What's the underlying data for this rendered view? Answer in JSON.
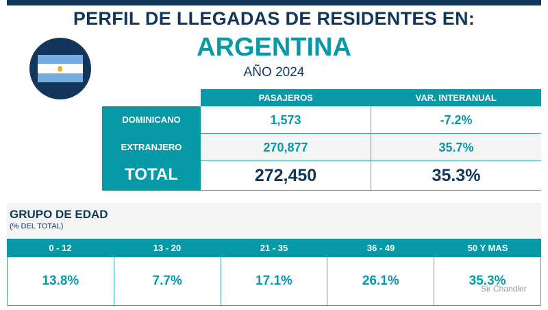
{
  "header": {
    "title": "PERFIL DE LLEGADAS DE RESIDENTES EN:",
    "country": "ARGENTINA",
    "year": "AÑO 2024"
  },
  "summary": {
    "columns": [
      "PASAJEROS",
      "VAR. INTERANUAL"
    ],
    "rows": [
      {
        "label": "DOMINICANO",
        "pasajeros": "1,573",
        "var": "-7.2%"
      },
      {
        "label": "EXTRANJERO",
        "pasajeros": "270,877",
        "var": "35.7%"
      },
      {
        "label": "TOTAL",
        "pasajeros": "272,450",
        "var": "35.3%"
      }
    ]
  },
  "age": {
    "title": "GRUPO DE EDAD",
    "subtitle": "(% DEL TOTAL)",
    "groups": [
      "0 - 12",
      "13 - 20",
      "21 - 35",
      "36 - 49",
      "50 Y MAS"
    ],
    "values": [
      "13.8%",
      "7.7%",
      "17.1%",
      "26.1%",
      "35.3%"
    ]
  },
  "watermark": "Sir Chandler",
  "colors": {
    "navy": "#12375a",
    "teal": "#0899a6"
  }
}
